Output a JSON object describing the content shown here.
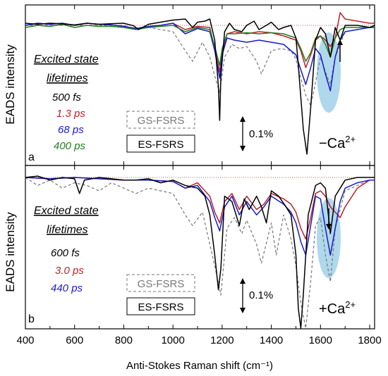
{
  "figure": {
    "y_axis_label": "EADS intensity",
    "x_axis_label": "Anti-Stokes Raman shift (cm⁻¹)",
    "x_ticks": [
      "400",
      "600",
      "800",
      "1000",
      "1200",
      "1400",
      "1600",
      "1800"
    ],
    "colors": {
      "black": "#000000",
      "red": "#c0202a",
      "blue": "#1a1acc",
      "green": "#1f7f1f",
      "gs": "#777777",
      "highlight": "#6fb8df"
    }
  },
  "chart_data": [
    {
      "type": "line",
      "panel_letter": "a",
      "condition": "−Ca",
      "condition_sup": "2+",
      "legend_title_1": "Excited state",
      "legend_title_2": "lifetimes",
      "series": [
        {
          "name": "500 fs",
          "color": "#000000",
          "x": [
            400,
            450,
            500,
            550,
            600,
            650,
            700,
            750,
            800,
            840,
            860,
            900,
            950,
            1000,
            1050,
            1080,
            1100,
            1130,
            1150,
            1170,
            1185,
            1190,
            1195,
            1210,
            1230,
            1250,
            1280,
            1300,
            1330,
            1350,
            1380,
            1400,
            1430,
            1450,
            1480,
            1500,
            1510,
            1520,
            1530,
            1545,
            1560,
            1580,
            1600,
            1620,
            1640,
            1660,
            1680,
            1700,
            1750,
            1800,
            1820
          ],
          "y": [
            1.0,
            0.95,
            1.0,
            0.97,
            0.92,
            1.0,
            0.95,
            0.98,
            1.0,
            0.88,
            0.7,
            0.95,
            1.05,
            1.15,
            1.2,
            0.8,
            1.05,
            1.1,
            1.2,
            0.2,
            -2.0,
            -3.6,
            -1.5,
            0.6,
            1.0,
            0.7,
            0.6,
            0.9,
            1.1,
            0.7,
            0.9,
            1.05,
            0.7,
            0.8,
            0.9,
            0.3,
            -1.0,
            -2.5,
            -4.0,
            -5.2,
            -3.0,
            0.2,
            0.8,
            0.5,
            -0.6,
            0.8,
            0.2,
            0.9,
            0.9,
            0.8,
            0.9
          ]
        },
        {
          "name": "1.3 ps",
          "color": "#c0202a",
          "x": [
            400,
            450,
            500,
            550,
            600,
            650,
            700,
            750,
            800,
            850,
            900,
            950,
            1000,
            1050,
            1100,
            1150,
            1170,
            1190,
            1200,
            1220,
            1250,
            1300,
            1350,
            1400,
            1450,
            1500,
            1520,
            1540,
            1560,
            1580,
            1600,
            1620,
            1640,
            1660,
            1680,
            1700,
            1750,
            1800,
            1820
          ],
          "y": [
            0.9,
            1.0,
            0.95,
            1.0,
            0.9,
            1.0,
            0.95,
            0.92,
            0.85,
            0.75,
            0.85,
            0.9,
            1.0,
            0.7,
            0.85,
            0.8,
            -0.2,
            -1.3,
            -0.4,
            0.5,
            0.6,
            0.5,
            0.6,
            0.55,
            0.4,
            0.2,
            -0.3,
            -1.1,
            -0.5,
            0.2,
            0.4,
            0.2,
            -0.1,
            0.3,
            1.5,
            1.2,
            1.1,
            1.0,
            1.0
          ]
        },
        {
          "name": "68 ps",
          "color": "#1a1acc",
          "x": [
            400,
            450,
            500,
            550,
            600,
            650,
            700,
            750,
            800,
            850,
            900,
            950,
            1000,
            1050,
            1100,
            1150,
            1170,
            1190,
            1200,
            1220,
            1250,
            1300,
            1350,
            1400,
            1450,
            1500,
            1520,
            1540,
            1560,
            1580,
            1600,
            1620,
            1640,
            1660,
            1680,
            1700,
            1750,
            1800,
            1820
          ],
          "y": [
            0.9,
            1.0,
            0.95,
            1.0,
            0.9,
            1.0,
            0.95,
            0.92,
            0.85,
            0.75,
            0.85,
            0.9,
            1.0,
            0.5,
            0.75,
            0.6,
            -0.3,
            -1.6,
            -0.5,
            0.3,
            0.2,
            0.1,
            0.2,
            0.1,
            0.0,
            -0.5,
            -1.2,
            -1.9,
            -1.1,
            -0.2,
            -0.5,
            -1.4,
            -2.2,
            -0.6,
            0.2,
            0.6,
            0.7,
            0.8,
            0.8
          ]
        },
        {
          "name": "400 ps",
          "color": "#1f7f1f",
          "x": [
            400,
            450,
            500,
            550,
            600,
            650,
            700,
            750,
            800,
            850,
            900,
            950,
            1000,
            1050,
            1100,
            1150,
            1170,
            1190,
            1200,
            1220,
            1250,
            1300,
            1350,
            1400,
            1450,
            1500,
            1520,
            1540,
            1560,
            1580,
            1600,
            1620,
            1640,
            1660,
            1680,
            1700,
            1750,
            1800,
            1820
          ],
          "y": [
            0.8,
            0.9,
            0.85,
            0.95,
            0.8,
            0.9,
            0.85,
            0.85,
            0.8,
            0.7,
            0.8,
            0.85,
            0.9,
            0.6,
            0.8,
            0.7,
            -0.1,
            -1.0,
            -0.2,
            0.5,
            0.5,
            0.55,
            0.5,
            0.55,
            0.5,
            0.3,
            -0.2,
            -0.8,
            -0.4,
            0.3,
            0.4,
            0.0,
            -0.6,
            0.3,
            0.7,
            0.8,
            0.8,
            0.8,
            0.8
          ]
        },
        {
          "name": "GS-FSRS",
          "color": "#777777",
          "dashed": true,
          "x": [
            400,
            500,
            600,
            700,
            800,
            850,
            900,
            1000,
            1050,
            1080,
            1120,
            1150,
            1170,
            1190,
            1210,
            1240,
            1270,
            1300,
            1340,
            1360,
            1400,
            1440,
            1480,
            1500,
            1520,
            1540,
            1560,
            1580,
            1600,
            1620,
            1640,
            1660,
            1700,
            1800,
            1820
          ],
          "y": [
            0.9,
            0.9,
            0.9,
            0.9,
            0.9,
            0.7,
            0.8,
            0.6,
            -0.3,
            -0.8,
            0.1,
            -0.6,
            -1.5,
            -2.3,
            -0.6,
            0.0,
            -0.2,
            -0.1,
            -0.8,
            -1.4,
            -0.3,
            -0.2,
            -0.3,
            -0.7,
            -1.6,
            -2.4,
            -2.9,
            -1.8,
            -0.6,
            -1.3,
            -1.9,
            -0.6,
            0.6,
            0.8,
            0.8
          ]
        }
      ]
    },
    {
      "type": "line",
      "panel_letter": "b",
      "condition": "+Ca",
      "condition_sup": "2+",
      "legend_title_1": "Excited state",
      "legend_title_2": "lifetimes",
      "series": [
        {
          "name": "600 fs",
          "color": "#000000",
          "x": [
            400,
            450,
            500,
            550,
            600,
            620,
            640,
            700,
            750,
            800,
            850,
            900,
            950,
            1000,
            1050,
            1100,
            1130,
            1150,
            1170,
            1185,
            1195,
            1210,
            1240,
            1270,
            1290,
            1310,
            1340,
            1360,
            1380,
            1400,
            1430,
            1460,
            1480,
            1500,
            1510,
            1520,
            1530,
            1550,
            1580,
            1600,
            1620,
            1640,
            1660,
            1680,
            1700,
            1750,
            1800,
            1820
          ],
          "y": [
            0.9,
            0.95,
            0.8,
            0.9,
            0.85,
            0.3,
            0.8,
            0.9,
            0.85,
            0.8,
            0.8,
            0.85,
            0.7,
            0.8,
            0.6,
            0.5,
            0.2,
            -0.5,
            -2.0,
            -3.3,
            -2.5,
            0.2,
            0.0,
            -0.9,
            0.1,
            -0.3,
            0.2,
            -0.2,
            -0.8,
            0.4,
            0.2,
            -0.2,
            -0.5,
            -2.0,
            -4.0,
            -5.5,
            -3.5,
            -0.5,
            0.6,
            0.7,
            0.5,
            -1.2,
            0.2,
            0.5,
            0.8,
            0.9,
            0.9,
            0.9
          ]
        },
        {
          "name": "3.0 ps",
          "color": "#c0202a",
          "x": [
            400,
            500,
            600,
            700,
            800,
            900,
            1000,
            1050,
            1100,
            1150,
            1170,
            1190,
            1210,
            1240,
            1270,
            1300,
            1340,
            1370,
            1400,
            1450,
            1480,
            1500,
            1520,
            1540,
            1560,
            1580,
            1600,
            1620,
            1640,
            1660,
            1680,
            1700,
            1750,
            1800,
            1820
          ],
          "y": [
            0.9,
            0.85,
            0.9,
            0.85,
            0.8,
            0.8,
            0.75,
            0.5,
            0.7,
            0.2,
            -0.4,
            -0.8,
            0.0,
            0.3,
            -0.3,
            0.2,
            -0.3,
            -0.1,
            0.3,
            0.1,
            -0.1,
            -0.4,
            -1.0,
            -1.4,
            -0.6,
            0.3,
            0.4,
            0.2,
            -0.2,
            -0.4,
            -0.6,
            -0.2,
            0.5,
            0.8,
            0.8
          ]
        },
        {
          "name": "440 ps",
          "color": "#1a1acc",
          "x": [
            400,
            500,
            600,
            700,
            800,
            900,
            1000,
            1050,
            1100,
            1150,
            1170,
            1190,
            1210,
            1240,
            1270,
            1300,
            1340,
            1370,
            1400,
            1450,
            1480,
            1500,
            1520,
            1540,
            1560,
            1580,
            1600,
            1620,
            1640,
            1660,
            1680,
            1700,
            1750,
            1800,
            1820
          ],
          "y": [
            0.9,
            0.85,
            0.9,
            0.85,
            0.8,
            0.8,
            0.75,
            0.5,
            0.6,
            0.0,
            -0.6,
            -1.1,
            -0.2,
            0.2,
            -0.5,
            0.0,
            -0.5,
            -0.2,
            0.2,
            -0.1,
            -0.4,
            -0.8,
            -1.5,
            -2.0,
            -0.9,
            0.2,
            0.1,
            -1.0,
            -2.0,
            -1.0,
            0.0,
            0.5,
            0.7,
            0.8,
            0.8
          ]
        },
        {
          "name": "GS-FSRS",
          "color": "#777777",
          "dashed": true,
          "x": [
            400,
            450,
            500,
            550,
            600,
            650,
            700,
            750,
            800,
            850,
            900,
            950,
            1000,
            1050,
            1080,
            1120,
            1150,
            1170,
            1195,
            1220,
            1250,
            1280,
            1300,
            1340,
            1360,
            1400,
            1420,
            1450,
            1480,
            1500,
            1520,
            1540,
            1560,
            1580,
            1600,
            1620,
            1640,
            1660,
            1700,
            1800,
            1820
          ],
          "y": [
            0.9,
            0.6,
            0.8,
            0.5,
            0.7,
            0.6,
            0.4,
            0.7,
            0.5,
            0.3,
            0.5,
            0.4,
            0.3,
            -0.5,
            -0.9,
            -0.4,
            -1.6,
            -2.4,
            -3.5,
            -1.0,
            -0.6,
            -1.2,
            -0.7,
            -1.6,
            -2.3,
            -0.8,
            -2.0,
            -0.5,
            -1.4,
            -2.4,
            -3.8,
            -4.8,
            -3.0,
            -0.9,
            -0.6,
            -2.0,
            -3.0,
            -1.0,
            0.4,
            0.8,
            0.8
          ]
        }
      ]
    }
  ],
  "boxes": {
    "gs_label": "GS-FSRS",
    "es_label": "ES-FSRS",
    "scale_label": "0.1%"
  }
}
